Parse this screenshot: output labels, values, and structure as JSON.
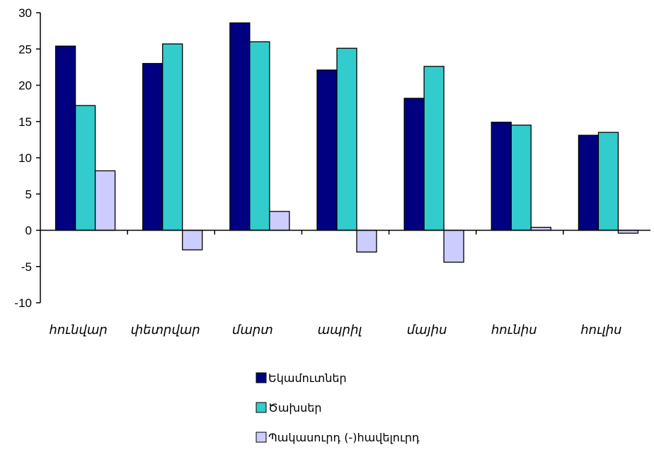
{
  "chart_data": {
    "type": "bar",
    "title": "",
    "xlabel": "",
    "ylabel": "",
    "ylim": [
      -10,
      30
    ],
    "yticks": [
      -10,
      -5,
      0,
      5,
      10,
      15,
      20,
      25,
      30
    ],
    "grid": false,
    "legend_position": "bottom-center",
    "categories": [
      "հունվար",
      "փետրվար",
      "մարտ",
      "ապրիլ",
      "մայիս",
      "հունիս",
      "հուլիս"
    ],
    "series": [
      {
        "name": "Եկամուտներ",
        "color": "#000080",
        "values": [
          25.4,
          23.0,
          28.6,
          22.1,
          18.2,
          14.9,
          13.1
        ]
      },
      {
        "name": "Ծախսեր",
        "color": "#33cccc",
        "values": [
          17.2,
          25.7,
          26.0,
          25.1,
          22.6,
          14.5,
          13.5
        ]
      },
      {
        "name": "Պակասուրդ (-)հավելուրդ",
        "color": "#ccccff",
        "values": [
          8.2,
          -2.7,
          2.6,
          -3.0,
          -4.4,
          0.4,
          -0.4
        ]
      }
    ]
  }
}
